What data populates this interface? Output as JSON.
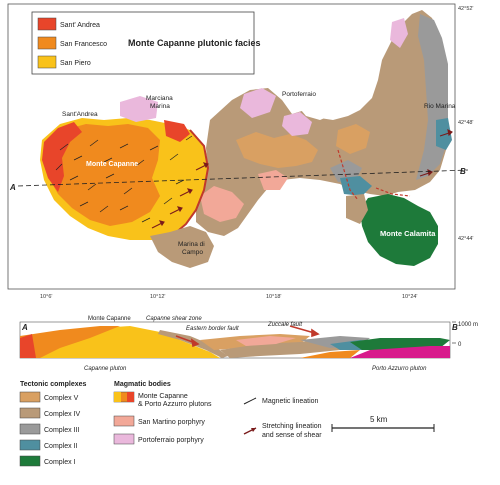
{
  "inset_legend": {
    "title": "Monte Capanne plutonic facies",
    "items": [
      {
        "label": "Sant' Andrea",
        "color": "#e8452a"
      },
      {
        "label": "San Francesco",
        "color": "#f08a1e"
      },
      {
        "label": "San Piero",
        "color": "#f9c21a"
      }
    ]
  },
  "map_labels": {
    "sant_andrea": "Sant'Andrea",
    "marciana_marina": "Marciana\nMarina",
    "monte_capanne": "Monte Capanne",
    "portoferraio": "Portoferraio",
    "rio_marina": "Rio Marina",
    "marina_di_campo": "Marina di\nCampo",
    "monte_calamita": "Monte Calamita",
    "section_a": "A",
    "section_b": "B"
  },
  "longitudes": [
    "10°6'",
    "10°12'",
    "10°18'",
    "10°24'"
  ],
  "latitudes": [
    "42°52'",
    "42°48'",
    "42°44'"
  ],
  "cross_section": {
    "label_a": "A",
    "label_b": "B",
    "monte_capanne": "Monte Capanne",
    "shear_zone": "Capanne shear zone",
    "eastern_fault": "Eastern border fault",
    "zuccale_fault": "Zuccale fault",
    "capanne_pluton": "Capanne pluton",
    "porto_azzurro_pluton": "Porto Azzurro pluton",
    "elev_1000": "1000 m",
    "elev_0": "0"
  },
  "legend": {
    "tectonic_title": "Tectonic complexes",
    "tectonic": [
      {
        "label": "Complex V",
        "color": "#d9a062"
      },
      {
        "label": "Complex IV",
        "color": "#b99a78"
      },
      {
        "label": "Complex III",
        "color": "#9a9a9a"
      },
      {
        "label": "Complex II",
        "color": "#4f8fa0"
      },
      {
        "label": "Complex I",
        "color": "#1e7a3a"
      }
    ],
    "magmatic_title": "Magmatic bodies",
    "magmatic": [
      {
        "label": "Monte Capanne\n& Porto Azzurro plutons",
        "color": "#f08a1e"
      },
      {
        "label": "San Martino porphyry",
        "color": "#f2a898"
      },
      {
        "label": "Portoferraio porphyry",
        "color": "#eab8dc"
      }
    ],
    "symbols": [
      {
        "label": "Magnetic lineation"
      },
      {
        "label": "Stretching lineation\nand sense of shear"
      }
    ],
    "scale": "5 km"
  }
}
